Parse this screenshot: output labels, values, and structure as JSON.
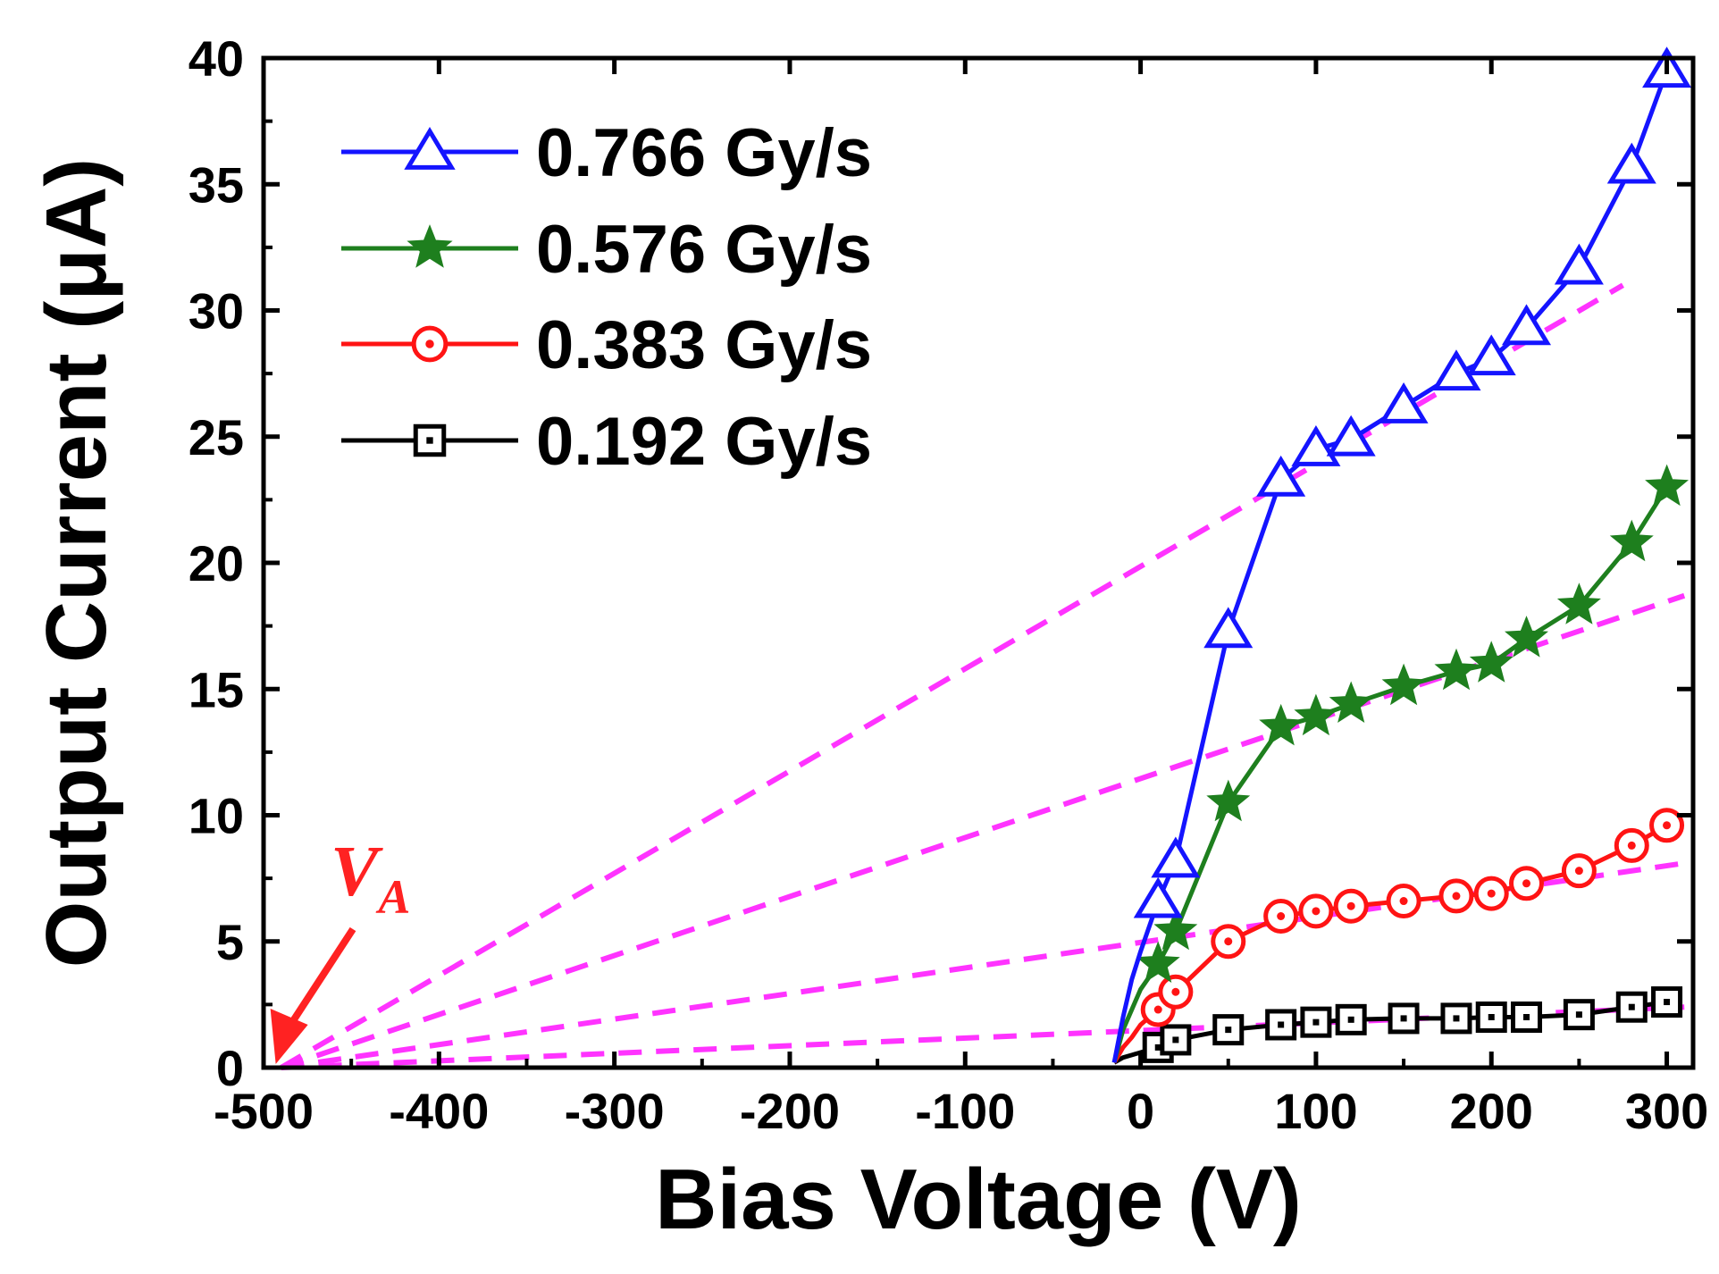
{
  "chart_data": {
    "type": "line",
    "title": "",
    "xlabel": "Bias Voltage (V)",
    "ylabel": "Output Current (μA)",
    "xlim": [
      -500,
      315
    ],
    "ylim": [
      0,
      40
    ],
    "xticks": [
      -500,
      -400,
      -300,
      -200,
      -100,
      0,
      100,
      200,
      300
    ],
    "yticks": [
      0,
      5,
      10,
      15,
      20,
      25,
      30,
      35,
      40
    ],
    "grid": false,
    "legend_position": "top-left",
    "series": [
      {
        "name": "0.766 Gy/s",
        "color": "#1414ff",
        "marker": "triangle-open",
        "line_style": "solid",
        "x": [
          -15,
          -10,
          -5,
          0,
          5,
          10,
          20,
          50,
          80,
          100,
          120,
          150,
          180,
          200,
          220,
          250,
          280,
          300
        ],
        "y": [
          0.2,
          2.0,
          3.5,
          4.6,
          5.6,
          6.6,
          8.2,
          17.3,
          23.3,
          24.5,
          24.9,
          26.2,
          27.5,
          28.1,
          29.3,
          31.7,
          35.7,
          39.5
        ]
      },
      {
        "name": "0.576 Gy/s",
        "color": "#1e7f1e",
        "marker": "star-filled",
        "line_style": "solid",
        "x": [
          -15,
          -10,
          -5,
          0,
          5,
          10,
          20,
          50,
          80,
          100,
          120,
          150,
          180,
          200,
          220,
          250,
          280,
          300
        ],
        "y": [
          0.2,
          1.5,
          2.3,
          3.1,
          3.6,
          4.1,
          5.4,
          10.5,
          13.5,
          13.9,
          14.4,
          15.1,
          15.7,
          16.0,
          17.0,
          18.3,
          20.8,
          23.0
        ]
      },
      {
        "name": "0.383 Gy/s",
        "color": "#ff1414",
        "marker": "circle-dot",
        "line_style": "solid",
        "x": [
          -15,
          -10,
          -5,
          0,
          5,
          10,
          20,
          50,
          80,
          100,
          120,
          150,
          180,
          200,
          220,
          250,
          280,
          300
        ],
        "y": [
          0.2,
          0.8,
          1.2,
          1.7,
          2.0,
          2.3,
          3.0,
          5.0,
          6.0,
          6.2,
          6.4,
          6.6,
          6.8,
          6.9,
          7.3,
          7.8,
          8.8,
          9.6
        ]
      },
      {
        "name": "0.192 Gy/s",
        "color": "#000000",
        "marker": "square-dot",
        "line_style": "solid",
        "x": [
          -15,
          -10,
          -5,
          0,
          5,
          10,
          20,
          50,
          80,
          100,
          120,
          150,
          180,
          200,
          220,
          250,
          280,
          300
        ],
        "y": [
          0.2,
          0.4,
          0.5,
          0.6,
          0.7,
          0.8,
          1.1,
          1.5,
          1.7,
          1.8,
          1.9,
          1.95,
          1.95,
          2.0,
          2.0,
          2.1,
          2.4,
          2.6
        ]
      }
    ],
    "fit_lines": {
      "color": "#ff33ff",
      "line_style": "dashed",
      "lines": [
        {
          "x": [
            -490,
            275
          ],
          "y": [
            0,
            31.0
          ]
        },
        {
          "x": [
            -490,
            310
          ],
          "y": [
            0,
            18.7
          ]
        },
        {
          "x": [
            -490,
            310
          ],
          "y": [
            0,
            8.1
          ]
        },
        {
          "x": [
            -490,
            310
          ],
          "y": [
            0,
            2.4
          ]
        }
      ]
    },
    "annotations": [
      {
        "text": "V",
        "subscript": "A",
        "color": "#ff2222",
        "x": -490,
        "y": 0
      }
    ]
  }
}
